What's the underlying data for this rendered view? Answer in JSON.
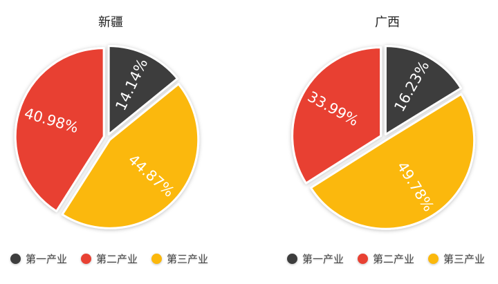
{
  "colors": {
    "primary": "#3d3d3d",
    "secondary": "#e84133",
    "tertiary": "#fbb80c"
  },
  "legend": [
    {
      "label": "第一产业",
      "color": "#3d3d3d"
    },
    {
      "label": "第二产业",
      "color": "#e84133"
    },
    {
      "label": "第三产业",
      "color": "#fbb80c"
    }
  ],
  "charts": [
    {
      "title": "新疆",
      "labels": [
        "14.14%",
        "44.87%",
        "40.98%"
      ]
    },
    {
      "title": "广西",
      "labels": [
        "16.23%",
        "49.78%",
        "33.99%"
      ]
    }
  ],
  "chart_data": [
    {
      "type": "pie",
      "title": "新疆",
      "categories": [
        "第一产业",
        "第二产业",
        "第三产业"
      ],
      "values": [
        14.14,
        40.98,
        44.87
      ],
      "colors": [
        "#3d3d3d",
        "#e84133",
        "#fbb80c"
      ],
      "legend_position": "bottom",
      "order_clockwise_from_top": [
        "第一产业",
        "第三产业",
        "第二产业"
      ]
    },
    {
      "type": "pie",
      "title": "广西",
      "categories": [
        "第一产业",
        "第二产业",
        "第三产业"
      ],
      "values": [
        16.23,
        33.99,
        49.78
      ],
      "colors": [
        "#3d3d3d",
        "#e84133",
        "#fbb80c"
      ],
      "legend_position": "bottom",
      "order_clockwise_from_top": [
        "第一产业",
        "第三产业",
        "第二产业"
      ]
    }
  ]
}
